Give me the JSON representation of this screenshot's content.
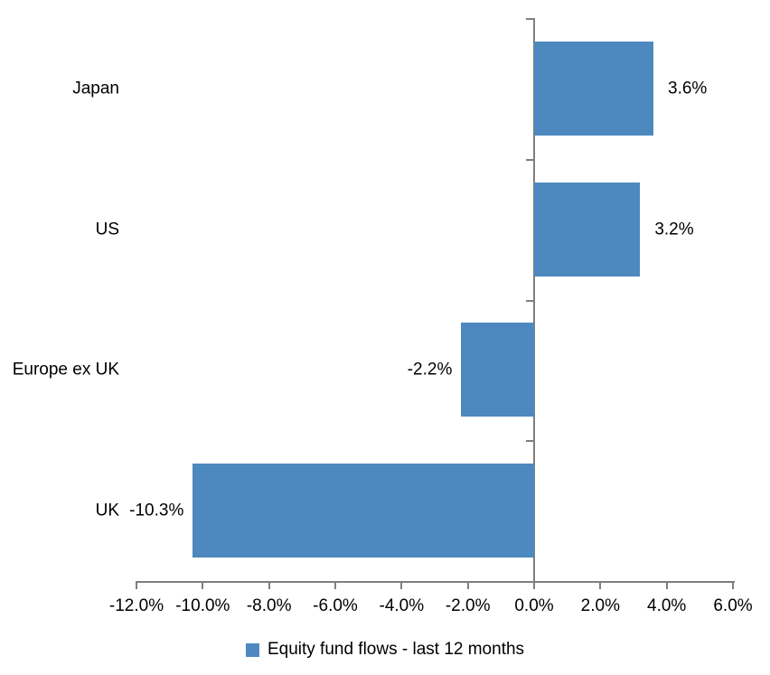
{
  "chart_data": {
    "type": "bar",
    "orientation": "horizontal",
    "categories": [
      "Japan",
      "US",
      "Europe ex UK",
      "UK"
    ],
    "values": [
      3.6,
      3.2,
      -2.2,
      -10.3
    ],
    "value_labels": [
      "3.6%",
      "3.2%",
      "-2.2%",
      "-10.3%"
    ],
    "title": "",
    "xlabel": "",
    "ylabel": "",
    "xlim": [
      -12,
      6
    ],
    "x_ticks": [
      -12,
      -10,
      -8,
      -6,
      -4,
      -2,
      0,
      2,
      4,
      6
    ],
    "x_tick_labels": [
      "-12.0%",
      "-10.0%",
      "-8.0%",
      "-6.0%",
      "-4.0%",
      "-2.0%",
      "0.0%",
      "2.0%",
      "4.0%",
      "6.0%"
    ],
    "grid": false,
    "legend_position": "bottom",
    "legend": {
      "label": "Equity fund flows - last 12 months"
    },
    "colors": {
      "bar": "#4d89bf",
      "axis": "#7f7f7f",
      "text": "#000000",
      "background": "#ffffff"
    }
  }
}
